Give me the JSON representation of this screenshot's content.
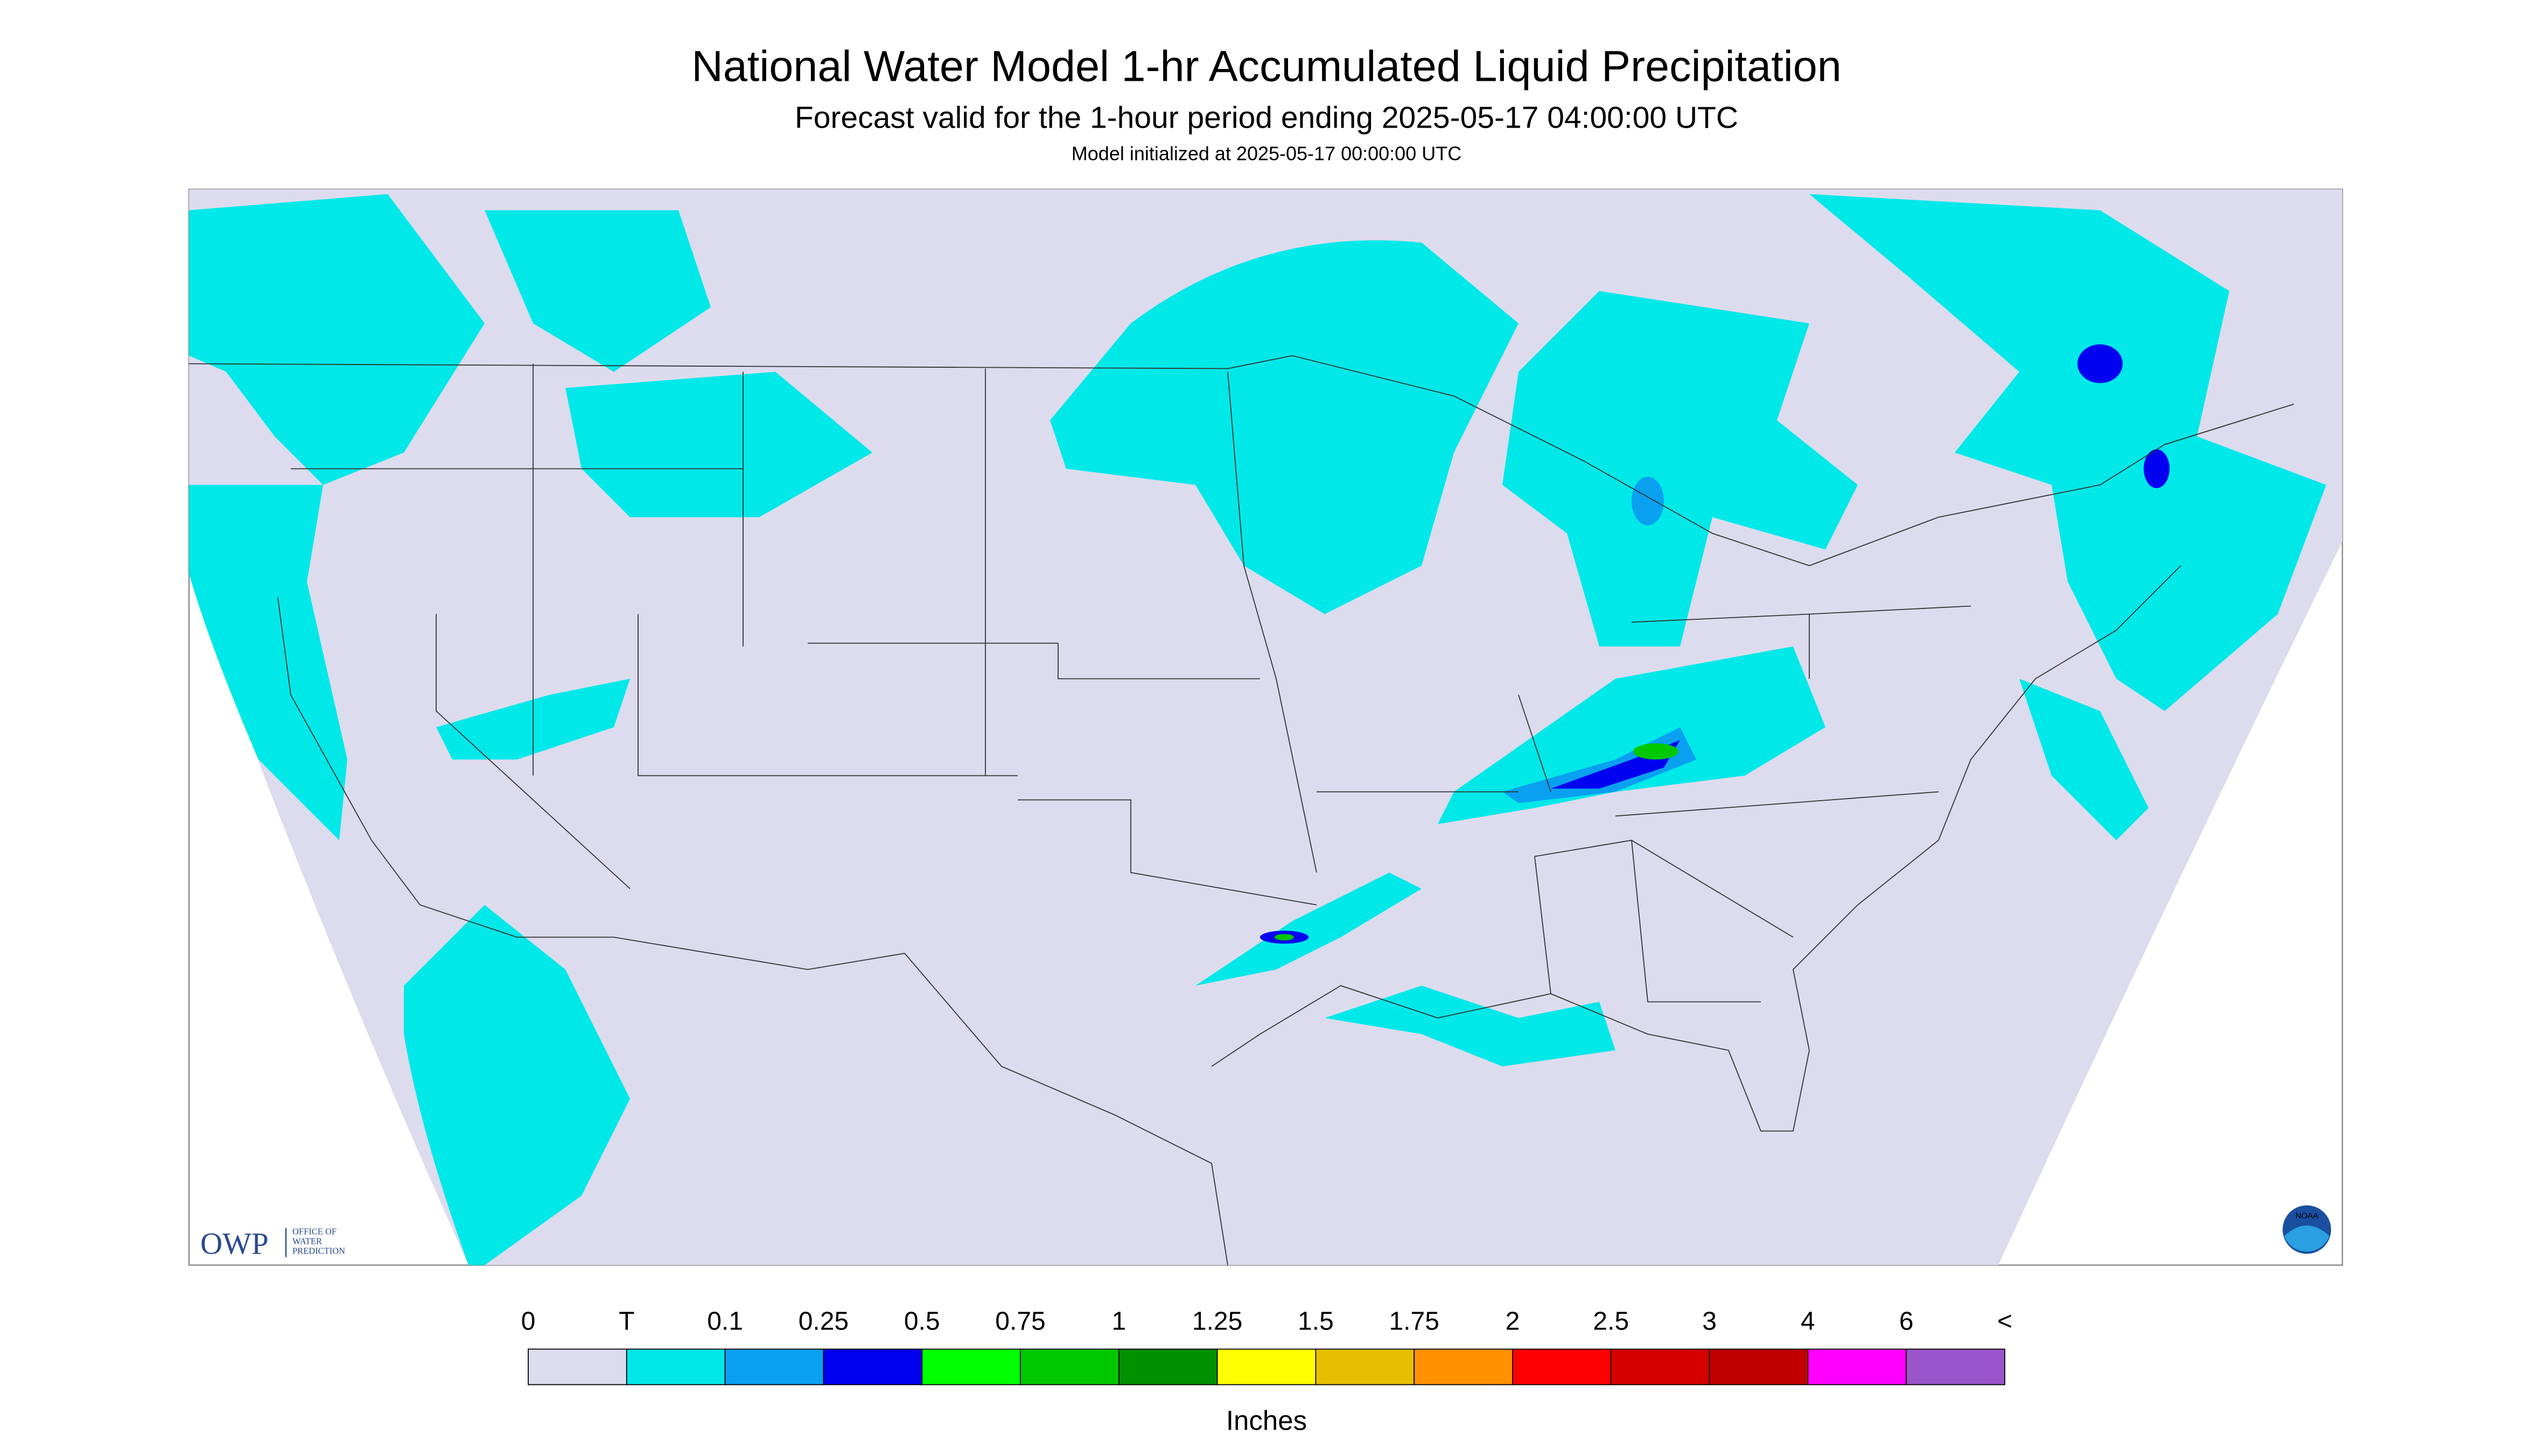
{
  "header": {
    "title": "National Water Model 1-hr Accumulated Liquid Precipitation",
    "subtitle": "Forecast valid for the 1-hour period ending 2025-05-17 04:00:00 UTC",
    "note": "Model initialized at 2025-05-17 00:00:00 UTC"
  },
  "legend": {
    "labels": [
      "0",
      "T",
      "0.1",
      "0.25",
      "0.5",
      "0.75",
      "1",
      "1.25",
      "1.5",
      "1.75",
      "2",
      "2.5",
      "3",
      "4",
      "6",
      "<"
    ],
    "colors": [
      "#dcdcee",
      "#00e8e8",
      "#0aa0f0",
      "#0000f0",
      "#00ff00",
      "#00c800",
      "#009000",
      "#ffff00",
      "#e6c000",
      "#ff9000",
      "#ff0000",
      "#d60000",
      "#c00000",
      "#ff00ff",
      "#9955c9"
    ],
    "unit": "Inches"
  },
  "logo": {
    "mark": "OWP",
    "lines": [
      "OFFICE OF",
      "WATER",
      "PREDICTION"
    ],
    "agency": "NOAA"
  }
}
